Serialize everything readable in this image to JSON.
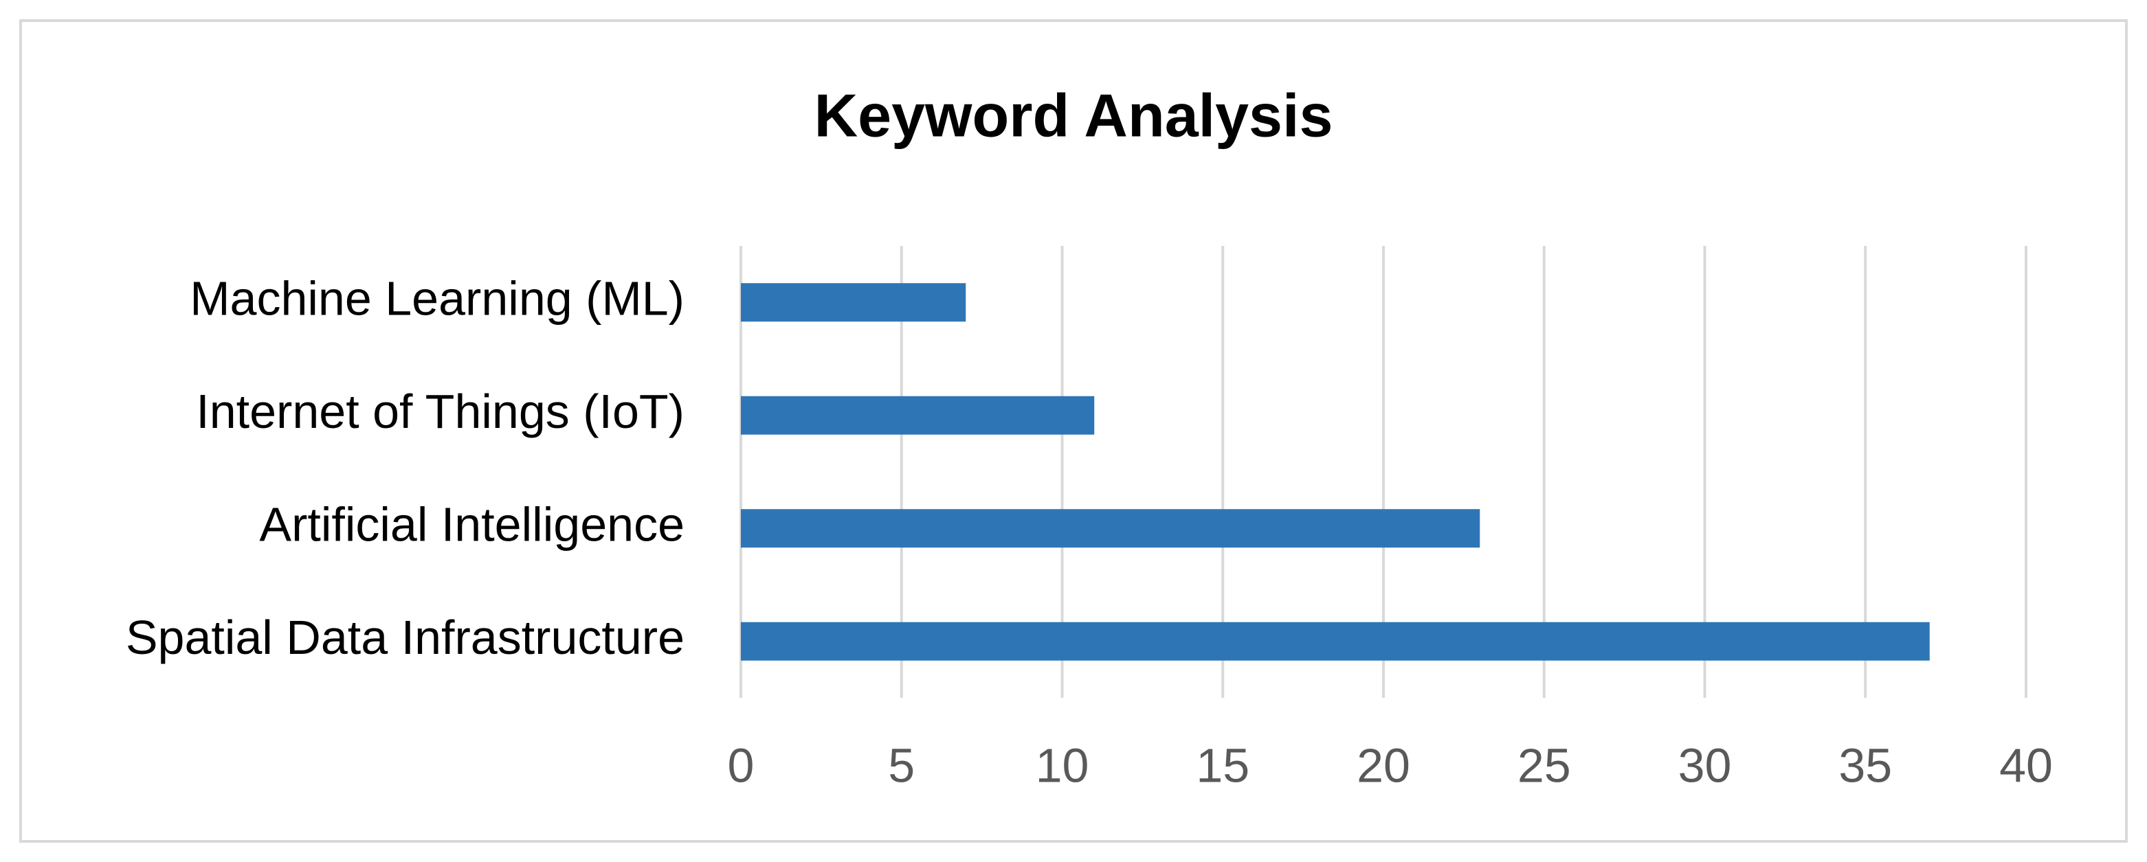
{
  "chart_data": {
    "type": "bar",
    "orientation": "horizontal",
    "title": "Keyword Analysis",
    "categories": [
      "Machine Learning (ML)",
      "Internet of Things (IoT)",
      "Artificial Intelligence",
      "Spatial Data Infrastructure"
    ],
    "values": [
      7,
      11,
      23,
      37
    ],
    "color": "#2e75b6",
    "xlim": [
      0,
      40
    ],
    "xticks": [
      0,
      5,
      10,
      15,
      20,
      25,
      30,
      35,
      40
    ],
    "grid": true
  }
}
